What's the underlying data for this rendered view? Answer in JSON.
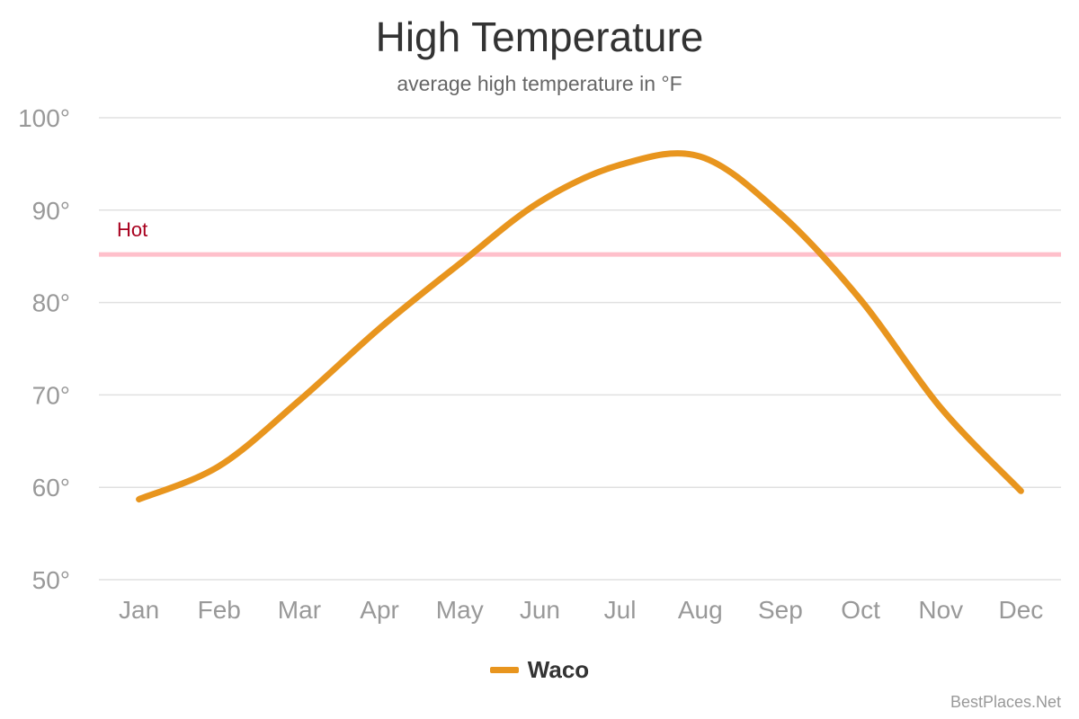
{
  "chart_data": {
    "type": "line",
    "title": "High Temperature",
    "subtitle": "average high temperature in °F",
    "categories": [
      "Jan",
      "Feb",
      "Mar",
      "Apr",
      "May",
      "Jun",
      "Jul",
      "Aug",
      "Sep",
      "Oct",
      "Nov",
      "Dec"
    ],
    "series": [
      {
        "name": "Waco",
        "color": "#E8951E",
        "values": [
          58.7,
          62.3,
          69.4,
          77.2,
          84.2,
          90.9,
          94.9,
          95.8,
          89.6,
          80.3,
          68.6,
          59.6
        ]
      }
    ],
    "yticks": [
      "50°",
      "60°",
      "70°",
      "80°",
      "90°",
      "100°"
    ],
    "ylim": [
      50,
      100
    ],
    "grid": true,
    "plot_line": {
      "label": "Hot",
      "value": 85.2,
      "color": "#FFC0CB",
      "label_color": "#A8001E"
    },
    "legend_position": "bottom-center"
  },
  "credit": "BestPlaces.Net"
}
